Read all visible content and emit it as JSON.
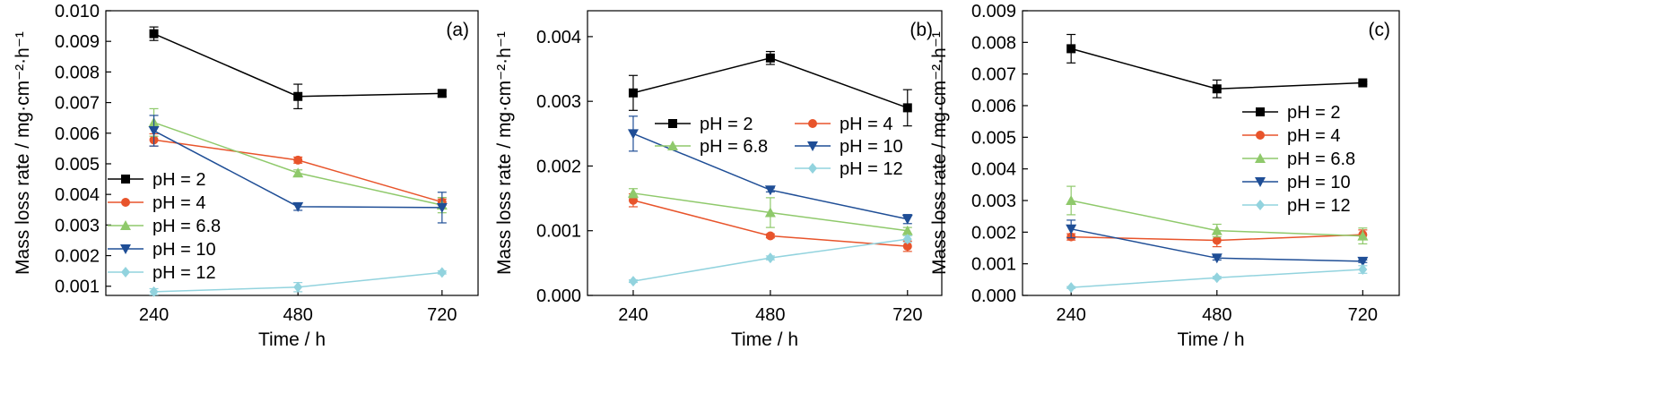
{
  "chart_data": [
    {
      "panel_label": "(a)",
      "type": "line",
      "xlabel": "Time / h",
      "ylabel": "Mass loss rate / mg·cm⁻²·h⁻¹",
      "x": [
        240,
        480,
        720
      ],
      "xticks": [
        "240",
        "480",
        "720"
      ],
      "xlim": [
        160,
        780
      ],
      "ylim": [
        0.0007,
        0.01
      ],
      "yticks": [
        "0.001",
        "0.002",
        "0.003",
        "0.004",
        "0.005",
        "0.006",
        "0.007",
        "0.008",
        "0.009",
        "0.010"
      ],
      "legend_position": "left",
      "series": [
        {
          "name": "pH = 2",
          "color": "#000000",
          "marker": "square",
          "values": [
            0.00925,
            0.0072,
            0.0073
          ],
          "errors": [
            0.00022,
            0.0004,
            0.0001
          ]
        },
        {
          "name": "pH = 4",
          "color": "#e8542b",
          "marker": "circle",
          "values": [
            0.00578,
            0.00512,
            0.00375
          ],
          "errors": [
            0.0002,
            0.0001,
            0.0001
          ]
        },
        {
          "name": "pH = 6.8",
          "color": "#8fc96b",
          "marker": "triangle-up",
          "values": [
            0.00635,
            0.0047,
            0.00365
          ],
          "errors": [
            0.00045,
            0.0001,
            0.00025
          ]
        },
        {
          "name": "pH = 10",
          "color": "#1f4e96",
          "marker": "triangle-down",
          "values": [
            0.00608,
            0.0036,
            0.00357
          ],
          "errors": [
            0.0005,
            0.00012,
            0.0005
          ]
        },
        {
          "name": "pH = 12",
          "color": "#92d3de",
          "marker": "diamond",
          "values": [
            0.00082,
            0.00097,
            0.00145
          ],
          "errors": [
            0.0001,
            0.00015,
            5e-05
          ]
        }
      ]
    },
    {
      "panel_label": "(b)",
      "type": "line",
      "xlabel": "Time / h",
      "ylabel": "Mass loss rate / mg·cm⁻²·h⁻¹",
      "x": [
        240,
        480,
        720
      ],
      "xticks": [
        "240",
        "480",
        "720"
      ],
      "xlim": [
        160,
        780
      ],
      "ylim": [
        0.0,
        0.0044
      ],
      "yticks": [
        "0.000",
        "0.001",
        "0.002",
        "0.003",
        "0.004"
      ],
      "legend_position": "top-center",
      "series": [
        {
          "name": "pH = 2",
          "color": "#000000",
          "marker": "square",
          "values": [
            0.00313,
            0.00367,
            0.0029
          ],
          "errors": [
            0.00027,
            0.0001,
            0.00028
          ]
        },
        {
          "name": "pH = 4",
          "color": "#e8542b",
          "marker": "circle",
          "values": [
            0.00147,
            0.00092,
            0.00076
          ],
          "errors": [
            0.0001,
            3e-05,
            8e-05
          ]
        },
        {
          "name": "pH = 6.8",
          "color": "#8fc96b",
          "marker": "triangle-up",
          "values": [
            0.00158,
            0.00128,
            0.001
          ],
          "errors": [
            7e-05,
            0.00023,
            5e-05
          ]
        },
        {
          "name": "pH = 10",
          "color": "#1f4e96",
          "marker": "triangle-down",
          "values": [
            0.0025,
            0.00163,
            0.00118
          ],
          "errors": [
            0.00027,
            3e-05,
            7e-05
          ]
        },
        {
          "name": "pH = 12",
          "color": "#92d3de",
          "marker": "diamond",
          "values": [
            0.00022,
            0.00058,
            0.00087
          ],
          "errors": [
            2e-05,
            3e-05,
            5e-05
          ]
        }
      ]
    },
    {
      "panel_label": "(c)",
      "type": "line",
      "xlabel": "Time / h",
      "ylabel": "Mass loss rate / mg·cm⁻²·h⁻¹",
      "x": [
        240,
        480,
        720
      ],
      "xticks": [
        "240",
        "480",
        "720"
      ],
      "xlim": [
        160,
        780
      ],
      "ylim": [
        0.0,
        0.009
      ],
      "yticks": [
        "0.000",
        "0.001",
        "0.002",
        "0.003",
        "0.004",
        "0.005",
        "0.006",
        "0.007",
        "0.008",
        "0.009"
      ],
      "legend_position": "right",
      "series": [
        {
          "name": "pH = 2",
          "color": "#000000",
          "marker": "square",
          "values": [
            0.0078,
            0.00653,
            0.00672
          ],
          "errors": [
            0.00045,
            0.00028,
            4e-05
          ]
        },
        {
          "name": "pH = 4",
          "color": "#e8542b",
          "marker": "circle",
          "values": [
            0.00185,
            0.00174,
            0.00192
          ],
          "errors": [
            0.0001,
            0.0002,
            0.00015
          ]
        },
        {
          "name": "pH = 6.8",
          "color": "#8fc96b",
          "marker": "triangle-up",
          "values": [
            0.003,
            0.00205,
            0.00188
          ],
          "errors": [
            0.00045,
            0.0002,
            0.00025
          ]
        },
        {
          "name": "pH = 10",
          "color": "#1f4e96",
          "marker": "triangle-down",
          "values": [
            0.0021,
            0.00118,
            0.00108
          ],
          "errors": [
            0.00028,
            6e-05,
            4e-05
          ]
        },
        {
          "name": "pH = 12",
          "color": "#92d3de",
          "marker": "diamond",
          "values": [
            0.00025,
            0.00056,
            0.00082
          ],
          "errors": [
            3e-05,
            4e-05,
            0.00012
          ]
        }
      ]
    }
  ]
}
